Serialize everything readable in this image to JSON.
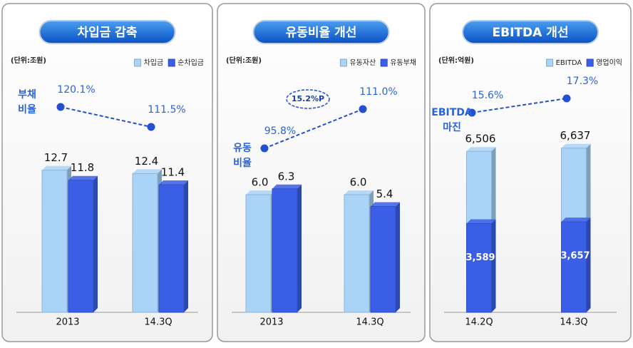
{
  "chart_data": [
    {
      "type": "bar",
      "title": "차입금 감축",
      "unit": "(단위:조원)",
      "categories": [
        "2013",
        "14.3Q"
      ],
      "series": [
        {
          "name": "차입금",
          "color": "#a9d3f7",
          "values": [
            12.7,
            12.4
          ],
          "value_labels": [
            "12.7",
            "12.4"
          ]
        },
        {
          "name": "순차입금",
          "color": "#3b5ee6",
          "values": [
            11.8,
            11.4
          ],
          "value_labels": [
            "11.8",
            "11.4"
          ]
        }
      ],
      "line": {
        "label": [
          "부채",
          "비율"
        ],
        "color": "#2250d0",
        "values": [
          120.1,
          111.5
        ],
        "value_labels": [
          "120.1%",
          "111.5%"
        ]
      }
    },
    {
      "type": "bar",
      "title": "유동비율 개선",
      "unit": "(단위:조원)",
      "categories": [
        "2013",
        "14.3Q"
      ],
      "series": [
        {
          "name": "유동자산",
          "color": "#a9d3f7",
          "values": [
            6.0,
            6.0
          ],
          "value_labels": [
            "6.0",
            "6.0"
          ]
        },
        {
          "name": "유동부채",
          "color": "#3b5ee6",
          "values": [
            6.3,
            5.4
          ],
          "value_labels": [
            "6.3",
            "5.4"
          ]
        }
      ],
      "line": {
        "label": [
          "유동",
          "비율"
        ],
        "color": "#2250d0",
        "values": [
          95.8,
          111.0
        ],
        "value_labels": [
          "95.8%",
          "111.0%"
        ]
      },
      "annotation": "15.2%P"
    },
    {
      "type": "bar",
      "overlap": true,
      "title": "EBITDA 개선",
      "unit": "(단위:억원)",
      "categories": [
        "14.2Q",
        "14.3Q"
      ],
      "series": [
        {
          "name": "EBITDA",
          "color": "#a9d3f7",
          "values": [
            6506,
            6637
          ],
          "value_labels": [
            "6,506",
            "6,637"
          ]
        },
        {
          "name": "영업이익",
          "color": "#3b5ee6",
          "values": [
            3589,
            3657
          ],
          "value_labels": [
            "3,589",
            "3,657"
          ]
        }
      ],
      "line": {
        "label": [
          "EBITDA",
          "마진"
        ],
        "color": "#2250d0",
        "values": [
          15.6,
          17.3
        ],
        "value_labels": [
          "15.6%",
          "17.3%"
        ]
      }
    }
  ]
}
